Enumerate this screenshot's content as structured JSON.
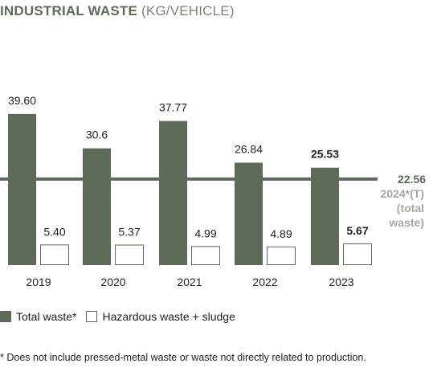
{
  "title_bold": "INDUSTRIAL WASTE",
  "title_unit": "(KG/VEHICLE)",
  "colors": {
    "total": "#5d6b58",
    "hazardous_border": "#5d6b58",
    "target_line": "#5d6b58",
    "target_text": "#a3aaa0"
  },
  "chart_data": {
    "type": "bar",
    "categories": [
      "2019",
      "2020",
      "2021",
      "2022",
      "2023"
    ],
    "series": [
      {
        "name": "Total waste*",
        "values": [
          39.6,
          30.6,
          37.77,
          26.84,
          25.53
        ],
        "labels": [
          "39.60",
          "30.6",
          "37.77",
          "26.84",
          "25.53"
        ]
      },
      {
        "name": "Hazardous waste + sludge",
        "values": [
          5.4,
          5.37,
          4.99,
          4.89,
          5.67
        ],
        "labels": [
          "5.40",
          "5.37",
          "4.99",
          "4.89",
          "5.67"
        ]
      }
    ],
    "bold_last_labels": true,
    "target": {
      "value": 22.56,
      "label": "22.56",
      "caption_lines": [
        "2024*(T)",
        "(total",
        "waste)"
      ]
    },
    "ylim": [
      0,
      40
    ]
  },
  "legend": {
    "total_label": "Total waste*",
    "hazardous_label": "Hazardous waste + sludge"
  },
  "footnote": "* Does not include pressed-metal waste or waste not directly related to production."
}
